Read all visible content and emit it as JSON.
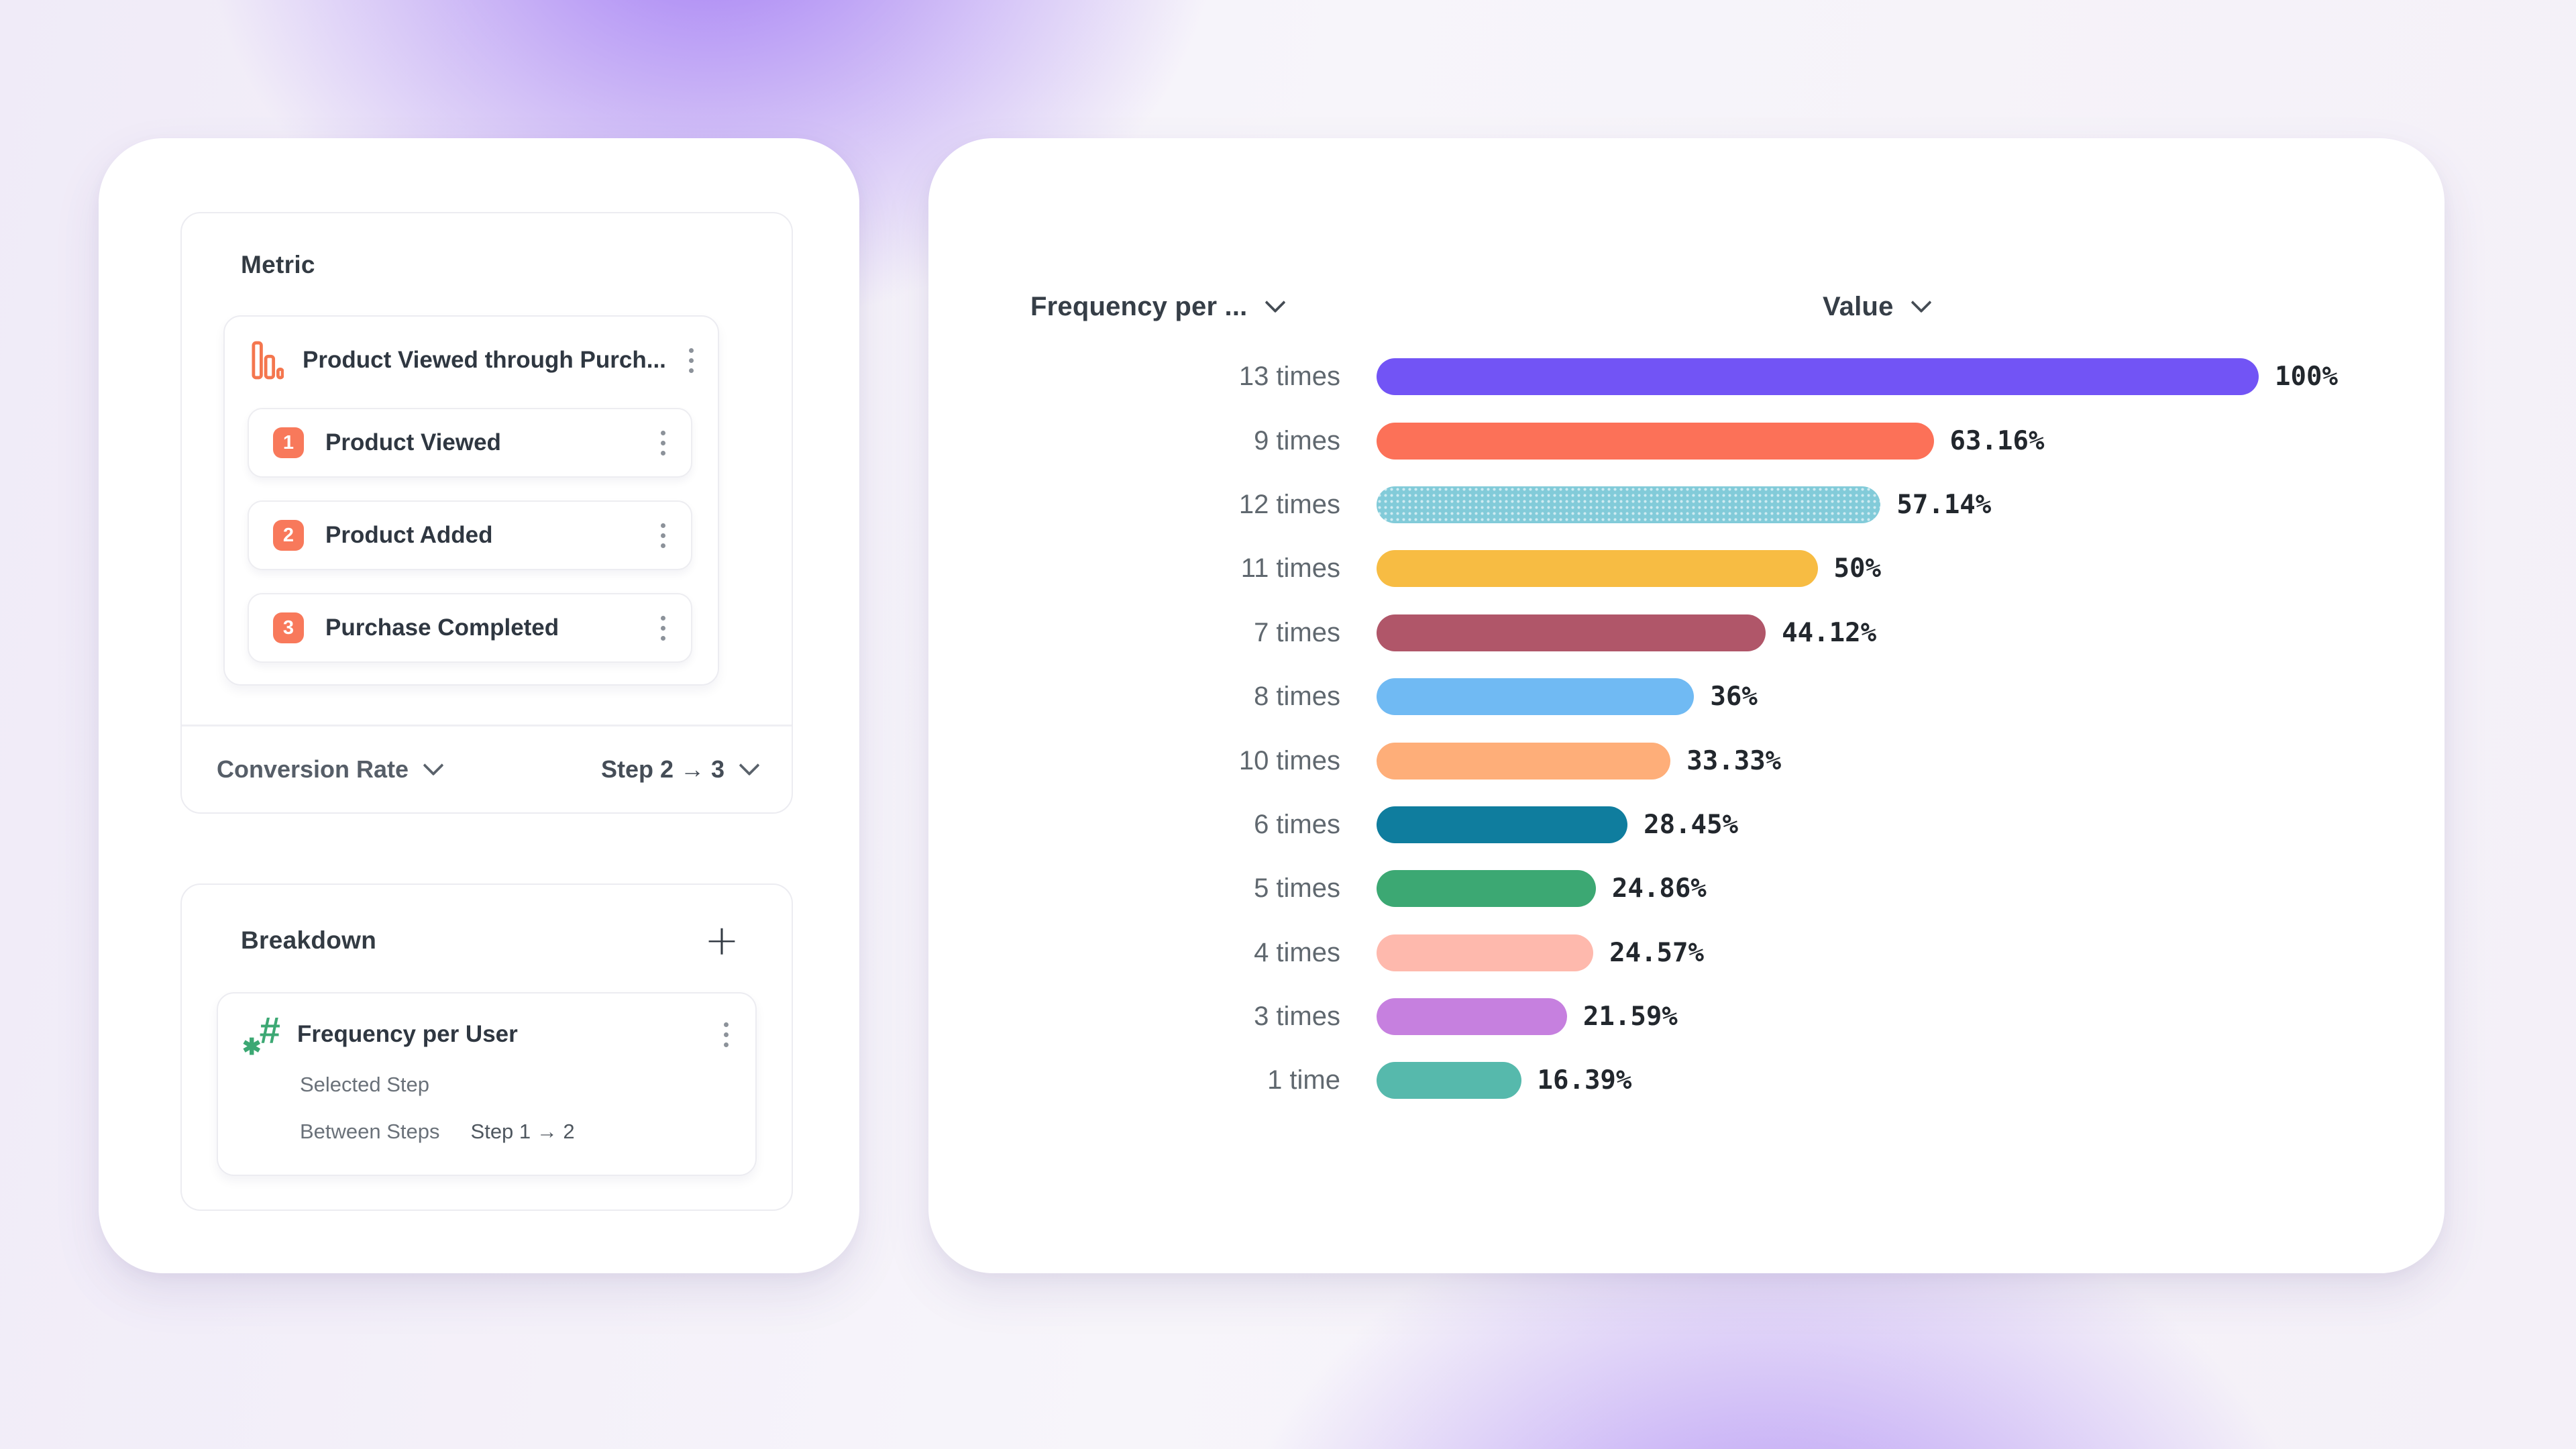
{
  "metric_panel": {
    "title": "Metric",
    "funnel_name": "Product Viewed through Purch...",
    "steps": [
      {
        "number": "1",
        "label": "Product Viewed"
      },
      {
        "number": "2",
        "label": "Product Added"
      },
      {
        "number": "3",
        "label": "Purchase Completed"
      }
    ],
    "measure_label": "Conversion Rate",
    "step_range_label": "Step 2 → 3",
    "accent_color": "#F8795B",
    "icon_color": "#F4764E"
  },
  "breakdown_panel": {
    "title": "Breakdown",
    "add_button": "+",
    "property_name": "Frequency per User",
    "selected_step_label": "Selected Step",
    "between_steps_label": "Between Steps",
    "between_steps_value": "Step 1 → 2",
    "accent_color": "#3CA873"
  },
  "chart": {
    "column1_header": "Frequency per ...",
    "column2_header": "Value"
  },
  "chart_data": {
    "type": "bar",
    "orientation": "horizontal",
    "column_headers": [
      "Frequency per ...",
      "Value"
    ],
    "categories": [
      "13 times",
      "9 times",
      "12 times",
      "11 times",
      "7 times",
      "8 times",
      "10 times",
      "6 times",
      "5 times",
      "4 times",
      "3 times",
      "1 time"
    ],
    "values": [
      100,
      63.16,
      57.14,
      50,
      44.12,
      36,
      33.33,
      28.45,
      24.86,
      24.57,
      21.59,
      16.39
    ],
    "value_labels": [
      "100%",
      "63.16%",
      "57.14%",
      "50%",
      "44.12%",
      "36%",
      "33.33%",
      "28.45%",
      "24.86%",
      "24.57%",
      "21.59%",
      "16.39%"
    ],
    "bar_colors": [
      "#7254F5",
      "#FC7158",
      "#82CBD9",
      "#F7BC43",
      "#B05669",
      "#70BAF3",
      "#FEAE79",
      "#0F7D9E",
      "#3CA873",
      "#FEB9AD",
      "#C680DF",
      "#56B9AC"
    ],
    "bar_patterns": [
      "solid",
      "solid",
      "dots",
      "solid",
      "solid",
      "solid",
      "solid",
      "solid",
      "solid",
      "solid",
      "solid",
      "solid"
    ],
    "xlim": [
      0,
      100
    ],
    "grid": false,
    "legend": false
  },
  "icons": {
    "metric_item": "funnel-bar-chart-icon",
    "breakdown_item": "numeric-hash-icon",
    "row_menu": "kebab-menu-icon",
    "add_breakdown": "plus-icon",
    "dropdown": "chevron-down-icon"
  }
}
